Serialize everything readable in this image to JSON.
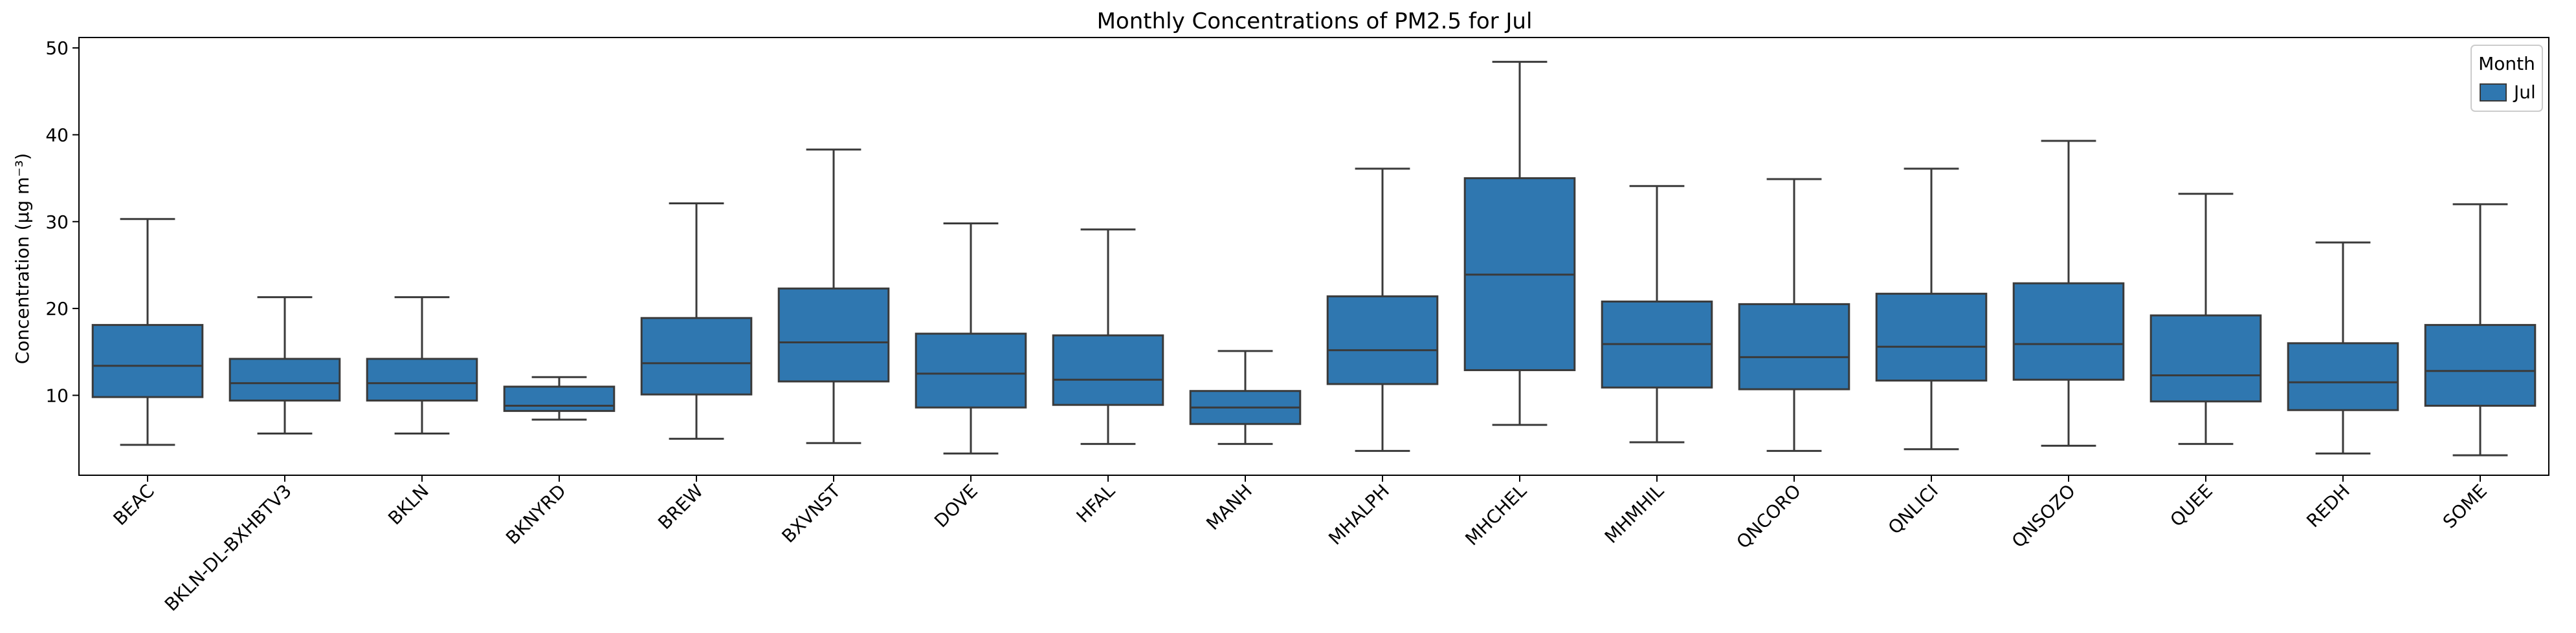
{
  "chart_data": {
    "type": "box",
    "title": "Monthly Concentrations of PM2.5 for Jul",
    "xlabel": "",
    "ylabel": "Concentration (µg m⁻³)",
    "ylim": [
      0.8,
      51.2
    ],
    "yticks": [
      10,
      20,
      30,
      40,
      50
    ],
    "grid": false,
    "legend": {
      "title": "Month",
      "entries": [
        "Jul"
      ],
      "placement": "top-right"
    },
    "series": [
      {
        "name": "Jul",
        "color": "#2f77b0",
        "boxes": [
          {
            "category": "BEAC",
            "whislo": 4.3,
            "q1": 9.8,
            "median": 13.4,
            "q3": 18.1,
            "whishi": 30.3
          },
          {
            "category": "BKLN-DL-BXHBTV3",
            "whislo": 5.6,
            "q1": 9.4,
            "median": 11.4,
            "q3": 14.2,
            "whishi": 21.3
          },
          {
            "category": "BKLN",
            "whislo": 5.6,
            "q1": 9.4,
            "median": 11.4,
            "q3": 14.2,
            "whishi": 21.3
          },
          {
            "category": "BKNYRD",
            "whislo": 7.2,
            "q1": 8.2,
            "median": 8.8,
            "q3": 11.0,
            "whishi": 12.1
          },
          {
            "category": "BREW",
            "whislo": 5.0,
            "q1": 10.1,
            "median": 13.7,
            "q3": 18.9,
            "whishi": 32.1
          },
          {
            "category": "BXVNST",
            "whislo": 4.5,
            "q1": 11.6,
            "median": 16.1,
            "q3": 22.3,
            "whishi": 38.3
          },
          {
            "category": "DOVE",
            "whislo": 3.3,
            "q1": 8.6,
            "median": 12.5,
            "q3": 17.1,
            "whishi": 29.8
          },
          {
            "category": "HFAL",
            "whislo": 4.4,
            "q1": 8.9,
            "median": 11.8,
            "q3": 16.9,
            "whishi": 29.1
          },
          {
            "category": "MANH",
            "whislo": 4.4,
            "q1": 6.7,
            "median": 8.6,
            "q3": 10.5,
            "whishi": 15.1
          },
          {
            "category": "MHALPH",
            "whislo": 3.6,
            "q1": 11.3,
            "median": 15.2,
            "q3": 21.4,
            "whishi": 36.1
          },
          {
            "category": "MHCHEL",
            "whislo": 6.6,
            "q1": 12.9,
            "median": 23.9,
            "q3": 35.0,
            "whishi": 48.4
          },
          {
            "category": "MHMHIL",
            "whislo": 4.6,
            "q1": 10.9,
            "median": 15.9,
            "q3": 20.8,
            "whishi": 34.1
          },
          {
            "category": "QNCORO",
            "whislo": 3.6,
            "q1": 10.7,
            "median": 14.4,
            "q3": 20.5,
            "whishi": 34.9
          },
          {
            "category": "QNLICI",
            "whislo": 3.8,
            "q1": 11.7,
            "median": 15.6,
            "q3": 21.7,
            "whishi": 36.1
          },
          {
            "category": "QNSOZO",
            "whislo": 4.2,
            "q1": 11.8,
            "median": 15.9,
            "q3": 22.9,
            "whishi": 39.3
          },
          {
            "category": "QUEE",
            "whislo": 4.4,
            "q1": 9.3,
            "median": 12.3,
            "q3": 19.2,
            "whishi": 33.2
          },
          {
            "category": "REDH",
            "whislo": 3.3,
            "q1": 8.3,
            "median": 11.5,
            "q3": 16.0,
            "whishi": 27.6
          },
          {
            "category": "SOME",
            "whislo": 3.1,
            "q1": 8.8,
            "median": 12.8,
            "q3": 18.1,
            "whishi": 32.0
          }
        ]
      }
    ]
  }
}
